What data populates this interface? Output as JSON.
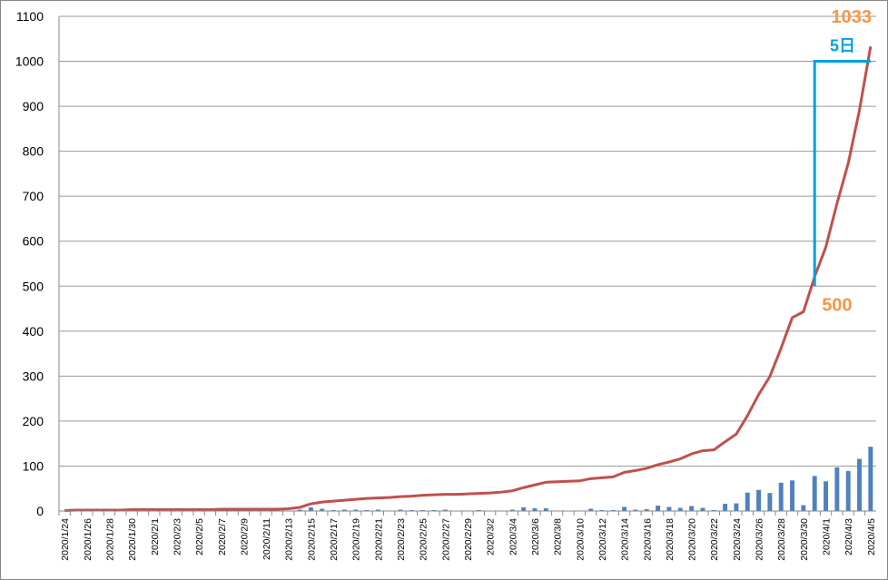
{
  "chart_data": {
    "type": "bar-line",
    "categories": [
      "2020/1/24",
      null,
      "2020/1/26",
      null,
      "2020/1/28",
      null,
      "2020/1/30",
      null,
      "2020/2/1",
      null,
      "2020/2/3",
      null,
      "2020/2/5",
      null,
      "2020/2/7",
      null,
      "2020/2/9",
      null,
      "2020/2/11",
      null,
      "2020/2/13",
      null,
      "2020/2/15",
      null,
      "2020/2/17",
      null,
      "2020/2/19",
      null,
      "2020/2/21",
      null,
      "2020/2/23",
      null,
      "2020/2/25",
      null,
      "2020/2/27",
      null,
      "2020/2/29",
      null,
      "2020/3/2",
      null,
      "2020/3/4",
      null,
      "2020/3/6",
      null,
      "2020/3/8",
      null,
      "2020/3/10",
      null,
      "2020/3/12",
      null,
      "2020/3/14",
      null,
      "2020/3/16",
      null,
      "2020/3/18",
      null,
      "2020/3/20",
      null,
      "2020/3/22",
      null,
      "2020/3/24",
      null,
      "2020/3/26",
      null,
      "2020/3/28",
      null,
      "2020/3/30",
      null,
      "2020/4/1",
      null,
      "2020/4/3",
      null,
      "2020/4/5"
    ],
    "series": [
      {
        "kind": "bar",
        "color": "#4f81bd",
        "values": [
          1,
          1,
          0,
          0,
          0,
          0,
          1,
          0,
          0,
          0,
          0,
          0,
          0,
          0,
          1,
          0,
          0,
          0,
          0,
          0,
          1,
          3,
          8,
          5,
          2,
          3,
          3,
          2,
          3,
          1,
          3,
          2,
          2,
          2,
          3,
          0,
          1,
          2,
          1,
          1,
          3,
          8,
          6,
          6,
          1,
          1,
          1,
          5,
          2,
          2,
          9,
          3,
          4,
          12,
          9,
          7,
          11,
          7,
          2,
          16,
          17,
          41,
          47,
          40,
          63,
          68,
          13,
          78,
          66,
          97,
          89,
          116,
          143
        ]
      },
      {
        "kind": "line",
        "color": "#c0504d",
        "values": [
          1,
          2,
          2,
          2,
          2,
          2,
          3,
          3,
          3,
          3,
          3,
          3,
          3,
          3,
          4,
          4,
          4,
          4,
          4,
          4,
          5,
          8,
          16,
          20,
          22,
          24,
          26,
          28,
          29,
          30,
          32,
          33,
          35,
          36,
          37,
          37,
          38,
          39,
          40,
          42,
          45,
          52,
          58,
          64,
          65,
          66,
          67,
          72,
          74,
          76,
          86,
          90,
          95,
          103,
          109,
          116,
          127,
          134,
          136,
          154,
          171,
          212,
          259,
          299,
          362,
          430,
          443,
          521,
          587,
          684,
          773,
          891,
          1033
        ]
      }
    ],
    "ylim": [
      0,
      1100
    ],
    "yticks": [
      0,
      100,
      200,
      300,
      400,
      500,
      600,
      700,
      800,
      900,
      1000,
      1100
    ],
    "grid": true,
    "annotations": {
      "low": 500,
      "high": 1033,
      "span": {
        "label": "5日",
        "from": 500,
        "to": 1000
      }
    }
  }
}
